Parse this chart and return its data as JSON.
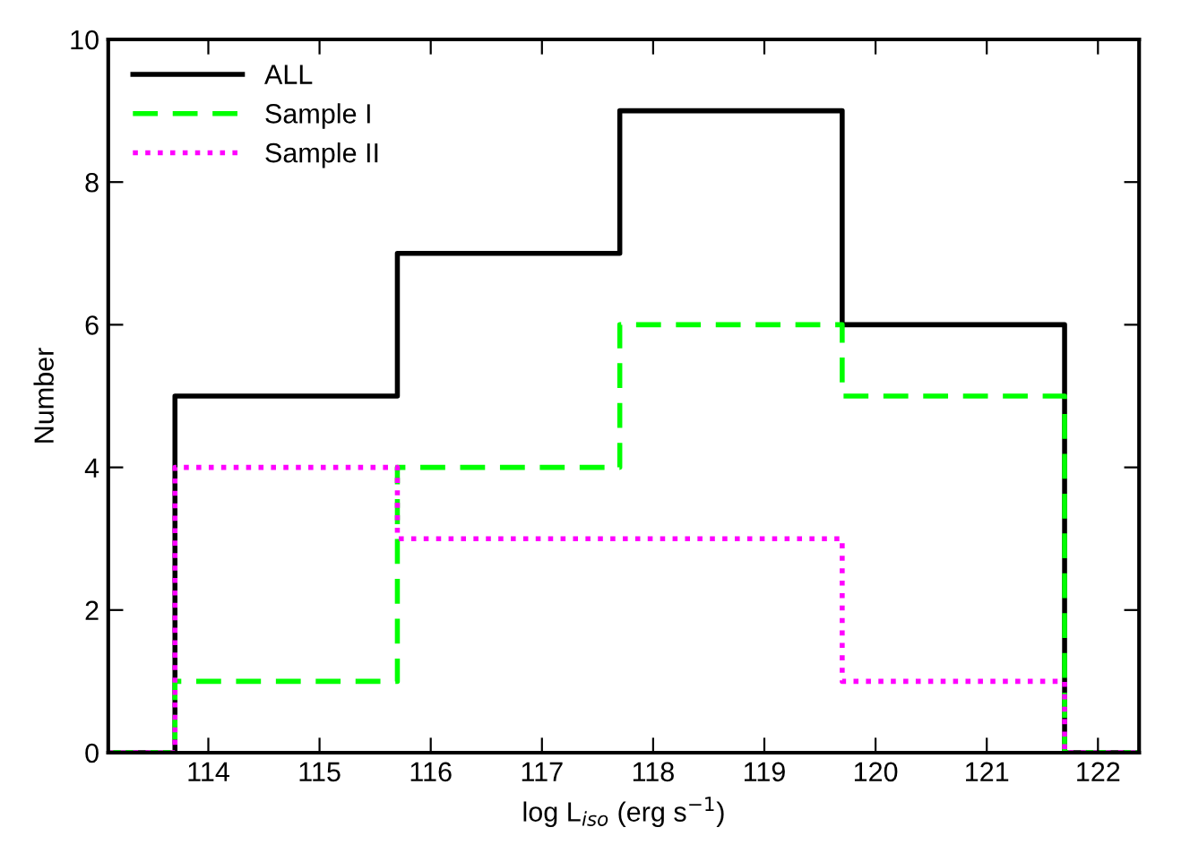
{
  "chart_data": {
    "type": "histogram",
    "xlabel": "log L$_{iso}$ (erg s$^{−1}$)",
    "ylabel": "Number",
    "bins": [
      113.1,
      113.7,
      115.7,
      117.7,
      119.7,
      121.7,
      122.37
    ],
    "series": [
      {
        "name": "ALL",
        "color": "#000000",
        "line_style": "solid",
        "values": [
          0,
          5,
          7,
          9,
          6,
          0
        ]
      },
      {
        "name": "Sample I",
        "color": "#00ff00",
        "line_style": "dashed",
        "values": [
          0,
          1,
          4,
          6,
          5,
          0
        ]
      },
      {
        "name": "Sample II",
        "color": "#ff00ff",
        "line_style": "dotted",
        "values": [
          0,
          4,
          3,
          3,
          1,
          0
        ]
      }
    ],
    "xlim": [
      113.1,
      122.37
    ],
    "xticks": [
      114,
      115,
      116,
      117,
      118,
      119,
      120,
      121,
      122
    ],
    "ylim": [
      0,
      10
    ],
    "yticks": [
      0,
      2,
      4,
      6,
      8,
      10
    ],
    "grid": false,
    "legend": "top left"
  }
}
